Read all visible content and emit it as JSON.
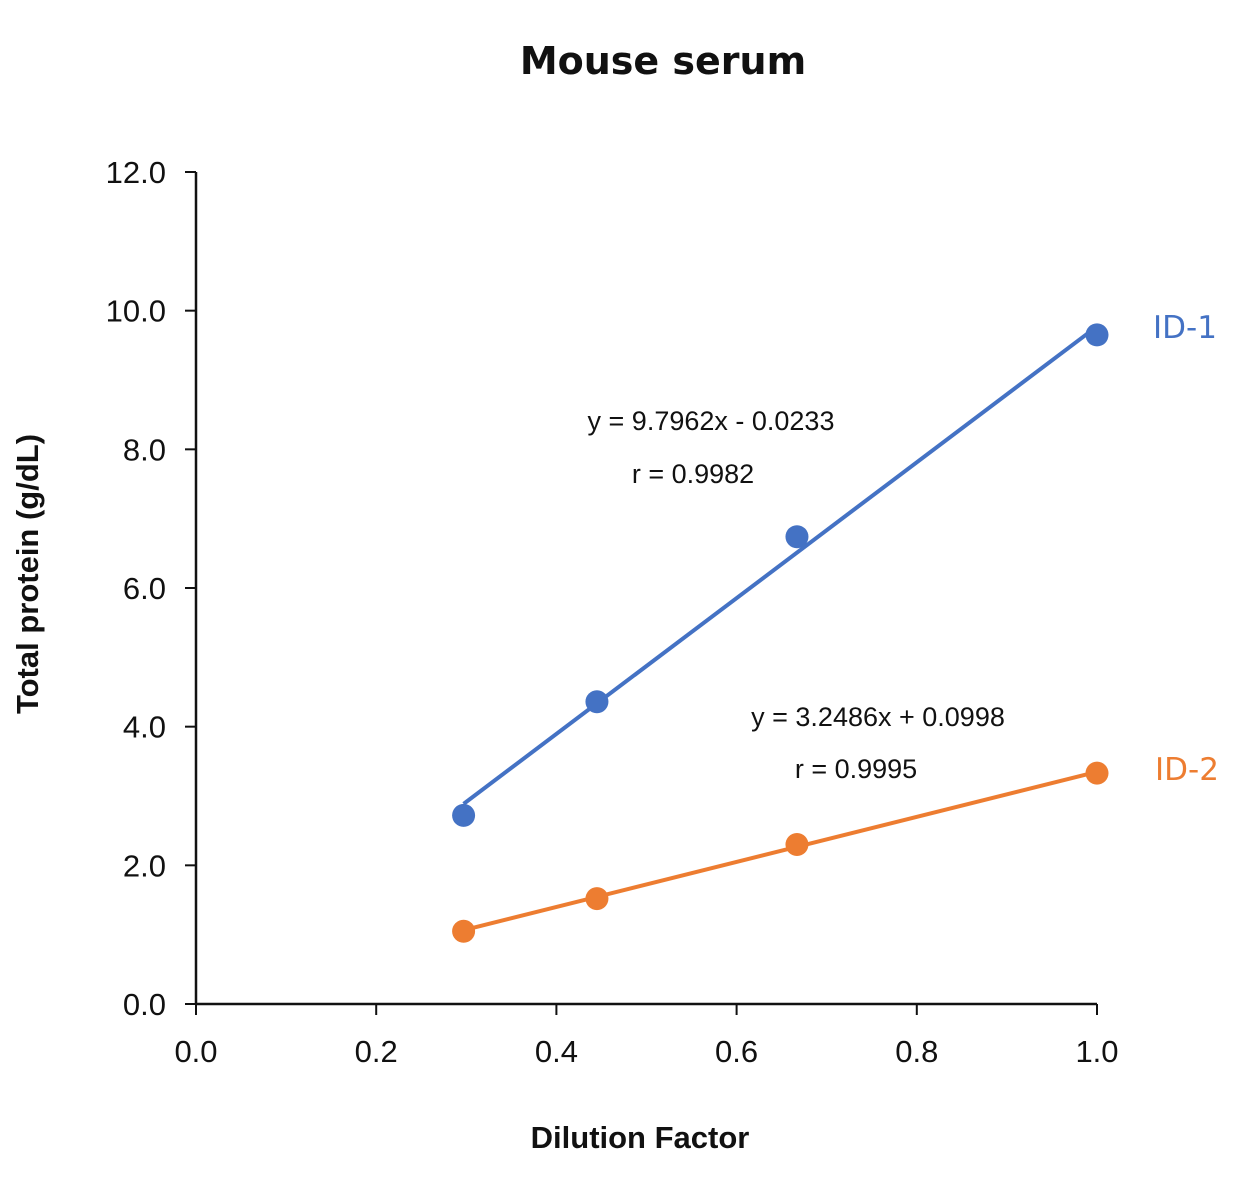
{
  "chart_data": {
    "type": "scatter",
    "title": "Mouse serum",
    "xlabel": "Dilution Factor",
    "ylabel": "Total protein (g/dL)",
    "xlim": [
      0,
      1.0
    ],
    "ylim": [
      0,
      12.0
    ],
    "x_ticks": [
      "0.0",
      "0.2",
      "0.4",
      "0.6",
      "0.8",
      "1.0"
    ],
    "y_ticks": [
      "0.0",
      "2.0",
      "4.0",
      "6.0",
      "8.0",
      "10.0",
      "12.0"
    ],
    "grid": false,
    "legend": "none",
    "series": [
      {
        "name": "ID-1",
        "color": "#4472C4",
        "x": [
          0.297,
          0.445,
          0.667,
          1.0
        ],
        "y": [
          2.72,
          4.36,
          6.74,
          9.65
        ],
        "trendline": {
          "slope": 9.7962,
          "intercept": -0.0233
        },
        "equation": "y = 9.7962x - 0.0233",
        "r_text": "r = 0.9982"
      },
      {
        "name": "ID-2",
        "color": "#ED7D31",
        "x": [
          0.297,
          0.445,
          0.667,
          1.0
        ],
        "y": [
          1.05,
          1.52,
          2.3,
          3.33
        ],
        "trendline": {
          "slope": 3.2486,
          "intercept": 0.0998
        },
        "equation": "y = 3.2486x + 0.0998",
        "r_text": "r = 0.9995"
      }
    ]
  }
}
